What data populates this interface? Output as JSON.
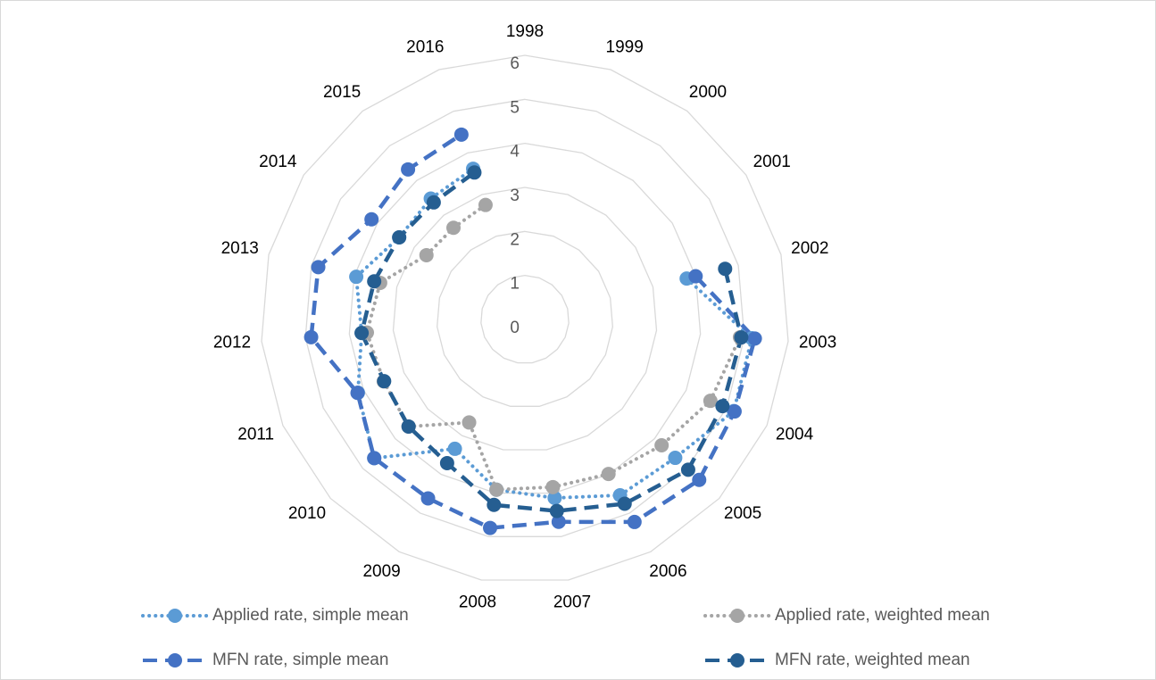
{
  "chart_data": {
    "type": "radar",
    "categories": [
      "1998",
      "1999",
      "2000",
      "2001",
      "2002",
      "2003",
      "2004",
      "2005",
      "2006",
      "2007",
      "2008",
      "2009",
      "2010",
      "2011",
      "2012",
      "2013",
      "2014",
      "2015",
      "2016"
    ],
    "ylim": [
      0,
      6
    ],
    "yticks": [
      0,
      1,
      2,
      3,
      4,
      5,
      6
    ],
    "grid": true,
    "legend": "bottom",
    "series": [
      {
        "name": "Applied rate, simple mean",
        "color": "#5b9bd5",
        "dash": "dot",
        "values": [
          null,
          null,
          null,
          null,
          3.79,
          5.17,
          5.18,
          4.64,
          4.54,
          4.11,
          3.92,
          3.34,
          4.65,
          4.14,
          3.72,
          3.95,
          3.41,
          3.48,
          3.62
        ]
      },
      {
        "name": "Applied rate, weighted mean",
        "color": "#a5a5a5",
        "dash": "dot",
        "values": [
          null,
          null,
          null,
          null,
          null,
          4.9,
          4.6,
          4.22,
          3.99,
          3.86,
          3.92,
          2.66,
          3.59,
          3.5,
          3.6,
          3.39,
          2.67,
          2.64,
          2.75
        ]
      },
      {
        "name": "MFN rate, simple mean",
        "color": "#4472c4",
        "dash": "dash",
        "values": [
          null,
          null,
          null,
          null,
          4.0,
          5.24,
          5.2,
          5.38,
          5.23,
          4.66,
          4.8,
          4.62,
          4.65,
          4.15,
          4.87,
          4.84,
          4.16,
          4.32,
          4.44
        ]
      },
      {
        "name": "MFN rate, weighted mean",
        "color": "#255e91",
        "dash": "dash",
        "values": [
          null,
          null,
          null,
          null,
          4.69,
          4.93,
          4.9,
          5.04,
          4.76,
          4.41,
          4.27,
          3.71,
          3.59,
          3.49,
          3.72,
          3.53,
          3.41,
          3.37,
          3.53
        ]
      }
    ]
  }
}
